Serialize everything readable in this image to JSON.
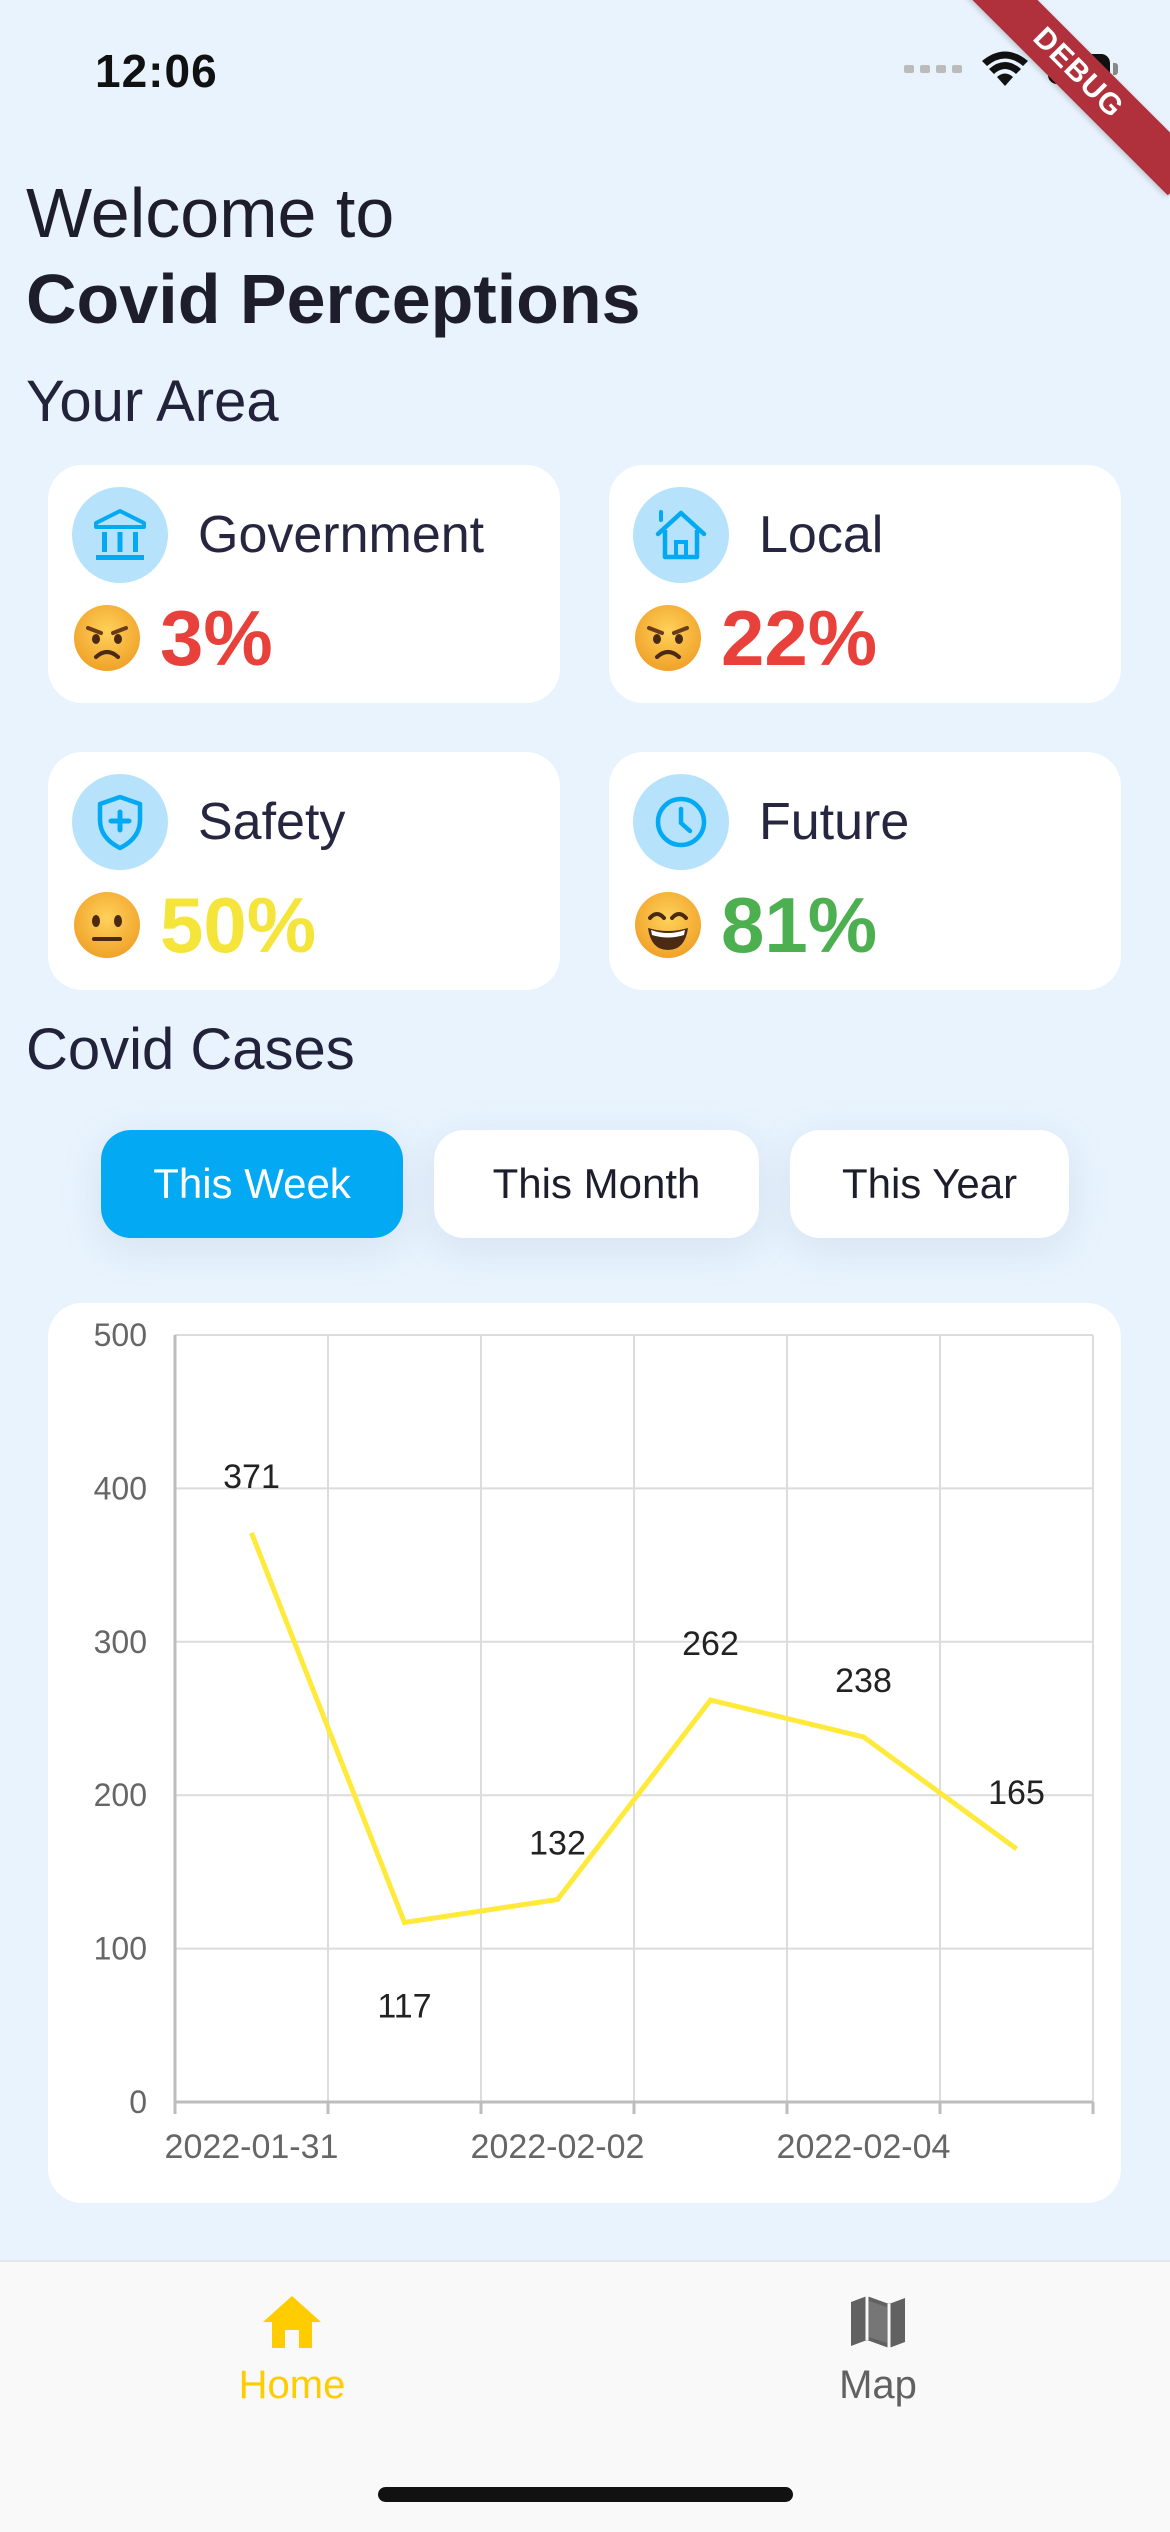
{
  "status_bar": {
    "time": "12:06"
  },
  "debug_banner": "DEBUG",
  "header": {
    "welcome_line1": "Welcome to",
    "welcome_line2": "Covid Perceptions"
  },
  "your_area": {
    "title": "Your Area",
    "cards": [
      {
        "label": "Government",
        "value": "3%",
        "icon": "government-building-icon",
        "emoji": "angry-face",
        "color": "#e8403a"
      },
      {
        "label": "Local",
        "value": "22%",
        "icon": "home-icon",
        "emoji": "angry-face",
        "color": "#e8403a"
      },
      {
        "label": "Safety",
        "value": "50%",
        "icon": "shield-plus-icon",
        "emoji": "neutral-face",
        "color": "#f5e43a"
      },
      {
        "label": "Future",
        "value": "81%",
        "icon": "clock-icon",
        "emoji": "grinning-face",
        "color": "#4caf50"
      }
    ]
  },
  "covid_cases": {
    "title": "Covid Cases",
    "tabs": [
      {
        "label": "This Week",
        "active": true
      },
      {
        "label": "This Month",
        "active": false
      },
      {
        "label": "This Year",
        "active": false
      }
    ]
  },
  "chart_data": {
    "type": "line",
    "x": [
      "2022-01-31",
      "2022-02-01",
      "2022-02-02",
      "2022-02-03",
      "2022-02-04",
      "2022-02-05"
    ],
    "xticks": [
      "2022-01-31",
      "2022-02-02",
      "2022-02-04"
    ],
    "yticks": [
      "0",
      "100",
      "200",
      "300",
      "400",
      "500"
    ],
    "series": [
      {
        "values": [
          371,
          117,
          132,
          262,
          238,
          165
        ],
        "color": "#ffe93b"
      }
    ],
    "ylim": [
      0,
      500
    ],
    "grid": true,
    "data_labels": true
  },
  "bottom_nav": {
    "items": [
      {
        "label": "Home",
        "icon": "home-icon",
        "active": true
      },
      {
        "label": "Map",
        "icon": "map-icon",
        "active": false
      }
    ]
  }
}
